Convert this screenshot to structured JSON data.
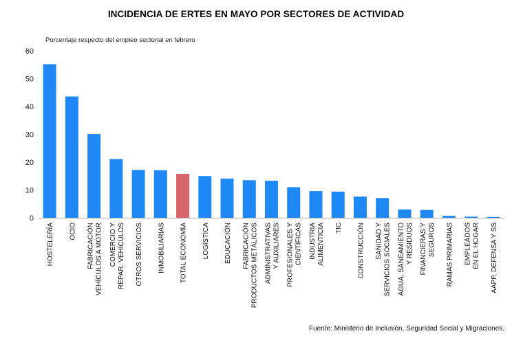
{
  "title": "INCIDENCIA DE ERTES EN MAYO POR SECTORES DE ACTIVIDAD",
  "subtitle": "Porcentaje respecto del empleo sectorial en febrero",
  "source": "Fuente: Ministerio de Inclusión, Seguridad Social y Migraciones.",
  "colors": {
    "bar": "#1e88f4",
    "highlight": "#d9646c",
    "axis": "#b0b0b0"
  },
  "chart_data": {
    "type": "bar",
    "title": "INCIDENCIA DE ERTES EN MAYO POR SECTORES DE ACTIVIDAD",
    "ylabel": "Porcentaje respecto del empleo sectorial en febrero",
    "xlabel": "",
    "ylim": [
      0,
      60
    ],
    "yticks": [
      0,
      10,
      20,
      30,
      40,
      50,
      60
    ],
    "grid": false,
    "highlighted_category": "TOTAL ECONOMÍA",
    "categories": [
      [
        "HOSTELERÍA"
      ],
      [
        "OCIO"
      ],
      [
        "FABRICACIÓN",
        "VEHÍCULOS A MOTOR"
      ],
      [
        "COMERCIO Y",
        "REPAR. VEHÍCULOS"
      ],
      [
        "OTROS SERVICIOS"
      ],
      [
        "INMOBILIARIAS"
      ],
      [
        "TOTAL ECONOMÍA"
      ],
      [
        "LOGÍSTICA"
      ],
      [
        "EDUCACIÓN"
      ],
      [
        "FABRICACIÓN",
        "PRODUCTOS METÁLICOS"
      ],
      [
        "ADMINISTRATIVAS",
        "Y AUXILIARES"
      ],
      [
        "PROFESIONALES Y",
        "CIENTÍFICAS"
      ],
      [
        "INDUSTRIA",
        "ALIMENTICIA"
      ],
      [
        "TIC"
      ],
      [
        "CONSTRUCCIÓN"
      ],
      [
        "SANIDAD Y",
        "SERVICIOS SOCIALES"
      ],
      [
        "AGUA, SANEAMIENTO",
        "Y RESIDUOS"
      ],
      [
        "FINANCIERAS Y",
        "SEGUROS"
      ],
      [
        "RAMAS PRIMARIAS"
      ],
      [
        "EMPLEADOS",
        "EN EL HOGAR"
      ],
      [
        "AAPP, DEFENSA Y SS"
      ]
    ],
    "values": [
      55.2,
      43.6,
      30.1,
      21.1,
      17.2,
      17.1,
      15.8,
      15.0,
      14.1,
      13.5,
      13.3,
      11.0,
      9.6,
      9.4,
      7.6,
      7.1,
      3.0,
      2.8,
      0.7,
      0.4,
      0.3
    ]
  }
}
